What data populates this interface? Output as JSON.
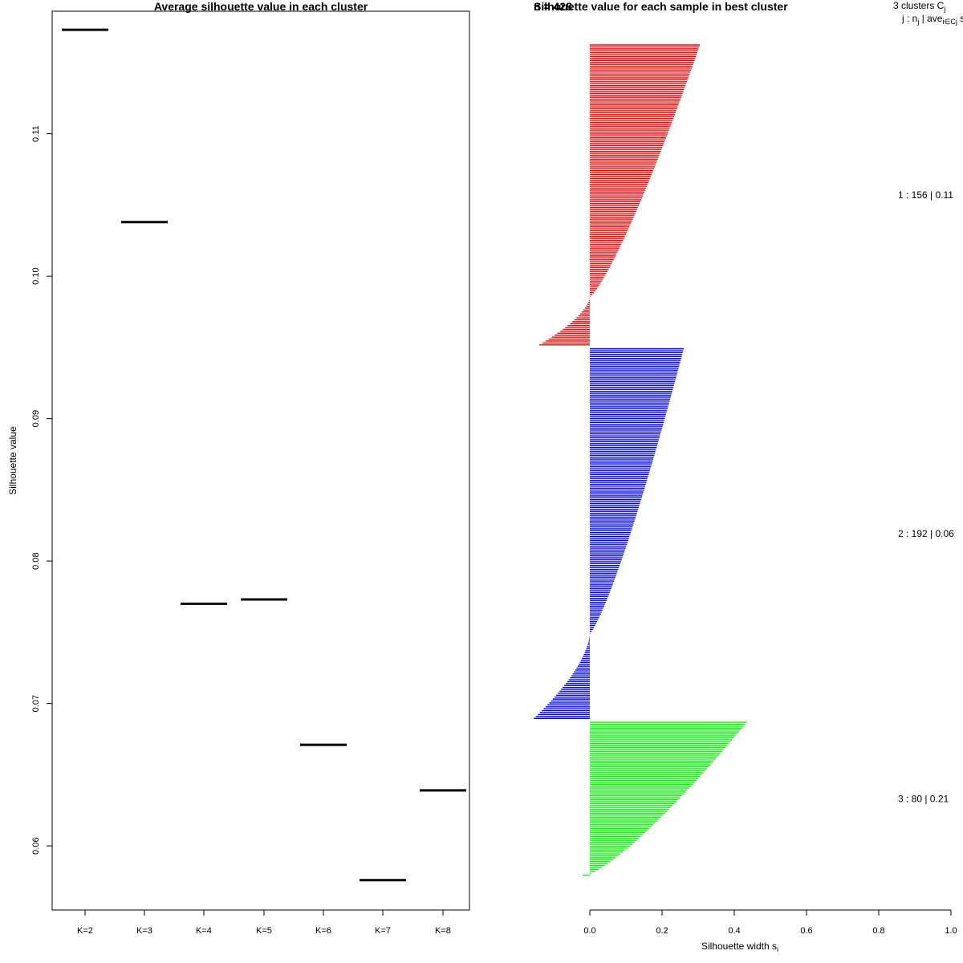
{
  "chart_data": [
    {
      "type": "scatter",
      "title": "Average silhouette value in each cluster",
      "xlabel": "",
      "ylabel": "Silhouette value",
      "categories": [
        "K=2",
        "K=3",
        "K=4",
        "K=5",
        "K=6",
        "K=7",
        "K=8"
      ],
      "values": [
        0.1173,
        0.1038,
        0.077,
        0.0773,
        0.0671,
        0.0576,
        0.0639
      ],
      "yticks": [
        "0.06",
        "0.07",
        "0.08",
        "0.09",
        "0.10",
        "0.11"
      ],
      "ylim": [
        0.0555,
        0.1186
      ]
    },
    {
      "type": "bar",
      "title": "Silhouette value for each sample in best cluster",
      "overlap_label": "n = 428",
      "xlabel": "Silhouette width s",
      "xlabel_sub": "i",
      "xlim": [
        0,
        1
      ],
      "xticks": [
        "0.0",
        "0.2",
        "0.4",
        "0.6",
        "0.8",
        "1.0"
      ],
      "header_line1": "3  clusters  C",
      "header_line1_sub": "j",
      "header_line2": "j :  n",
      "header_line2_sub": "j",
      "header_line2_mid": " | ave",
      "header_line2_sub2": "i∈Cj",
      "header_line2_end": "  s",
      "clusters": [
        {
          "label": "1 :  156  |  0.11",
          "n": 156,
          "color": "#ff0000",
          "max": 0.305,
          "zero_frac": 0.84,
          "min": -0.14
        },
        {
          "label": "2 :  192  |  0.06",
          "n": 192,
          "color": "#0000ff",
          "max": 0.26,
          "zero_frac": 0.77,
          "min": -0.155
        },
        {
          "label": "3 :  80  |  0.21",
          "n": 80,
          "color": "#00ff00",
          "max": 0.435,
          "zero_frac": 0.99,
          "min": -0.02
        }
      ]
    }
  ]
}
